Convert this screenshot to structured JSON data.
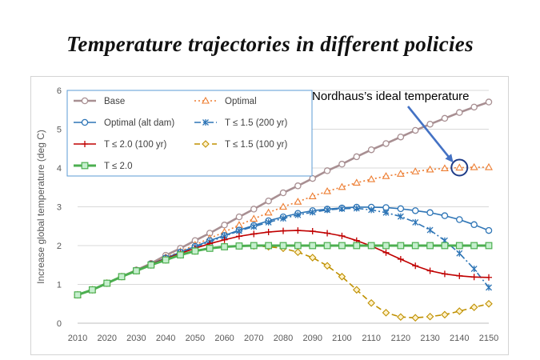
{
  "title": "Temperature trajectories in different policies",
  "chart_data": {
    "type": "line",
    "title": "Temperature trajectories in different policies",
    "xlabel": "",
    "ylabel": "Increase global temperature (deg C)",
    "xlim": [
      2010,
      2150
    ],
    "ylim": [
      0,
      6
    ],
    "x_ticks": [
      2010,
      2020,
      2030,
      2040,
      2050,
      2060,
      2070,
      2080,
      2090,
      2100,
      2110,
      2120,
      2130,
      2140,
      2150
    ],
    "y_ticks": [
      0,
      1,
      2,
      3,
      4,
      5,
      6
    ],
    "grid": "horizontal",
    "legend_position": "top-left",
    "x": [
      2010,
      2015,
      2020,
      2025,
      2030,
      2035,
      2040,
      2045,
      2050,
      2055,
      2060,
      2065,
      2070,
      2075,
      2080,
      2085,
      2090,
      2095,
      2100,
      2105,
      2110,
      2115,
      2120,
      2125,
      2130,
      2135,
      2140,
      2145,
      2150
    ],
    "series": [
      {
        "name": "Base",
        "color": "#a88f92",
        "style": "solid",
        "marker": "circle",
        "values": [
          0.73,
          0.86,
          1.03,
          1.2,
          1.37,
          1.54,
          1.75,
          1.93,
          2.13,
          2.32,
          2.53,
          2.74,
          2.94,
          3.15,
          3.36,
          3.54,
          3.73,
          3.93,
          4.1,
          4.29,
          4.47,
          4.63,
          4.8,
          4.97,
          5.13,
          5.28,
          5.43,
          5.57,
          5.7
        ]
      },
      {
        "name": "Optimal",
        "color": "#ed7d31",
        "style": "dotted",
        "marker": "triangle",
        "values": [
          0.73,
          0.86,
          1.03,
          1.2,
          1.36,
          1.52,
          1.7,
          1.85,
          2.02,
          2.19,
          2.35,
          2.53,
          2.69,
          2.85,
          3.0,
          3.13,
          3.27,
          3.4,
          3.51,
          3.62,
          3.71,
          3.79,
          3.85,
          3.91,
          3.96,
          3.99,
          4.01,
          4.02,
          4.02
        ]
      },
      {
        "name": "Optimal (alt dam)",
        "color": "#2e75b6",
        "style": "solid",
        "marker": "circle",
        "values": [
          0.73,
          0.86,
          1.03,
          1.2,
          1.36,
          1.52,
          1.68,
          1.83,
          1.98,
          2.13,
          2.26,
          2.4,
          2.52,
          2.64,
          2.74,
          2.83,
          2.9,
          2.94,
          2.97,
          2.99,
          2.99,
          2.98,
          2.95,
          2.9,
          2.85,
          2.77,
          2.67,
          2.54,
          2.39
        ]
      },
      {
        "name": "T ≤ 1.5 (200 yr)",
        "color": "#2e75b6",
        "style": "dashdot",
        "marker": "star",
        "values": [
          0.73,
          0.86,
          1.03,
          1.2,
          1.36,
          1.52,
          1.67,
          1.81,
          1.96,
          2.1,
          2.24,
          2.38,
          2.49,
          2.6,
          2.7,
          2.79,
          2.86,
          2.92,
          2.95,
          2.96,
          2.92,
          2.85,
          2.75,
          2.6,
          2.4,
          2.13,
          1.8,
          1.4,
          0.92
        ]
      },
      {
        "name": "T ≤ 2.0 (100 yr)",
        "color": "#c00000",
        "style": "solid",
        "marker": "plus",
        "values": [
          0.73,
          0.86,
          1.03,
          1.2,
          1.36,
          1.52,
          1.66,
          1.8,
          1.93,
          2.05,
          2.15,
          2.24,
          2.3,
          2.35,
          2.38,
          2.39,
          2.37,
          2.32,
          2.25,
          2.13,
          1.99,
          1.82,
          1.65,
          1.48,
          1.35,
          1.27,
          1.22,
          1.19,
          1.18
        ]
      },
      {
        "name": "T ≤ 1.5 (100 yr)",
        "color": "#bf9000",
        "style": "dashed",
        "marker": "diamond",
        "values": [
          0.73,
          0.86,
          1.03,
          1.2,
          1.35,
          1.5,
          1.63,
          1.76,
          1.86,
          1.94,
          1.98,
          1.99,
          1.99,
          1.97,
          1.93,
          1.83,
          1.69,
          1.48,
          1.2,
          0.86,
          0.52,
          0.27,
          0.16,
          0.14,
          0.17,
          0.22,
          0.31,
          0.41,
          0.5
        ]
      },
      {
        "name": "T ≤ 2.0",
        "color": "#4caf50",
        "style": "solid-thick",
        "marker": "square",
        "values": [
          0.73,
          0.86,
          1.03,
          1.2,
          1.35,
          1.5,
          1.63,
          1.76,
          1.86,
          1.93,
          1.97,
          1.99,
          2.0,
          2.0,
          2.0,
          2.0,
          2.0,
          2.0,
          2.0,
          2.0,
          2.0,
          2.0,
          2.0,
          2.0,
          2.0,
          2.0,
          2.0,
          2.0,
          2.0
        ]
      }
    ],
    "annotation": {
      "text": "Nordhaus’s ideal temperature",
      "target_series": "Optimal",
      "target_x": 2140,
      "target_y": 4.01,
      "arrow_color": "#4472c4",
      "circle_color": "#1f3c88"
    }
  }
}
